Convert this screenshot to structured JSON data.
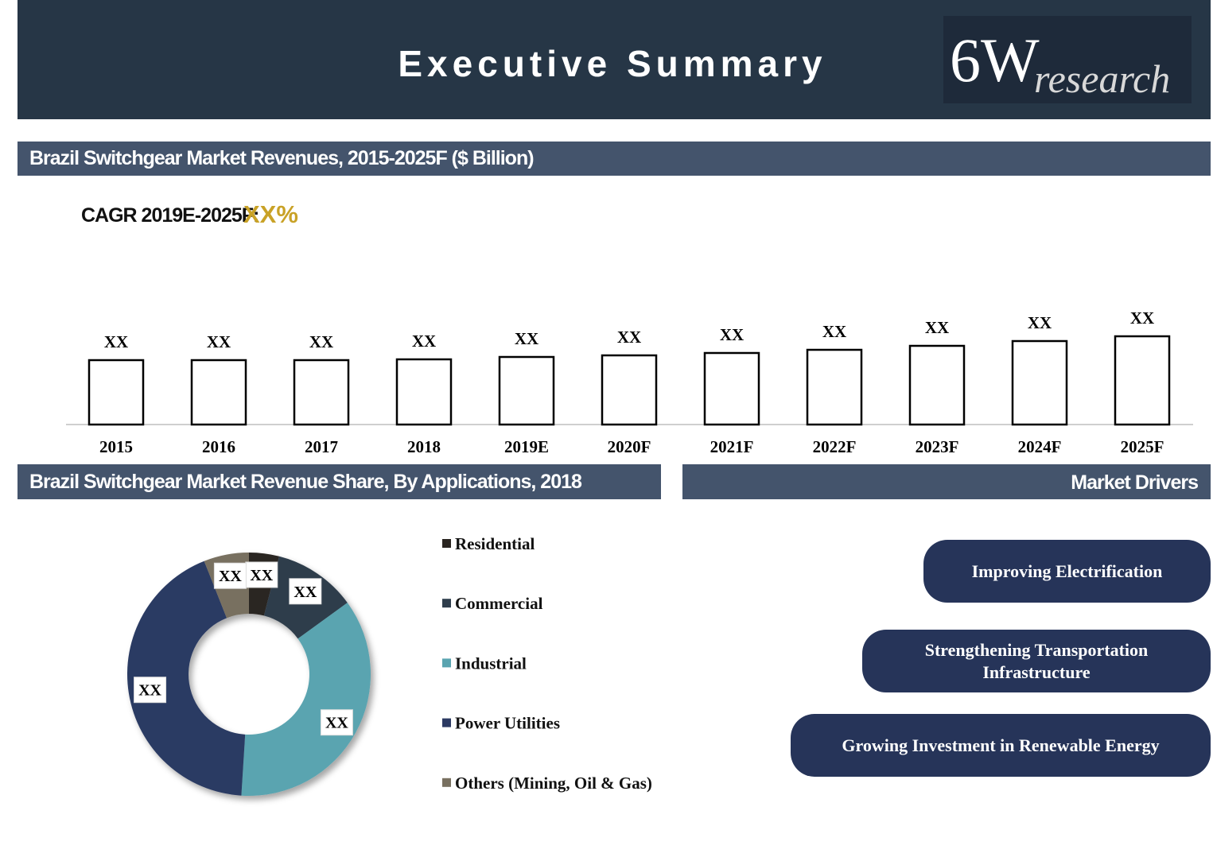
{
  "header": {
    "title": "Executive Summary",
    "logo": {
      "mark": "6W",
      "word": "research"
    }
  },
  "sections": {
    "revenues": "Brazil Switchgear Market Revenues, 2015-2025F ($ Billion)",
    "share": "Brazil Switchgear Market Revenue Share, By Applications, 2018",
    "drivers": "Market Drivers"
  },
  "cagr": {
    "label": "CAGR 2019E-2025F:",
    "value": "XX%"
  },
  "chart_data": [
    {
      "type": "bar",
      "categories": [
        "2015",
        "2016",
        "2017",
        "2018",
        "2019E",
        "2020F",
        "2021F",
        "2022F",
        "2023F",
        "2024F",
        "2025F"
      ],
      "values": [
        8.1,
        8.1,
        8.1,
        8.2,
        8.5,
        8.7,
        9.0,
        9.4,
        9.9,
        10.5,
        11.1
      ],
      "value_labels": [
        "XX",
        "XX",
        "XX",
        "XX",
        "XX",
        "XX",
        "XX",
        "XX",
        "XX",
        "XX",
        "XX"
      ],
      "color": "#ffffff",
      "edge_color": "#000000"
    },
    {
      "type": "donut",
      "categories": [
        "Residential",
        "Commercial",
        "Industrial",
        "Power Utilities",
        "Others (Mining, Oil & Gas)"
      ],
      "values": [
        4,
        11,
        36,
        43,
        6
      ],
      "value_labels": [
        "XX",
        "XX",
        "XX",
        "XX",
        "XX"
      ],
      "colors": [
        "#2a2521",
        "#2f3e4c",
        "#5aa4b0",
        "#2c3a63",
        "#787060"
      ]
    }
  ],
  "market_drivers": [
    "Improving Electrification",
    "Strengthening Transportation Infrastructure",
    "Growing Investment in Renewable Energy"
  ]
}
